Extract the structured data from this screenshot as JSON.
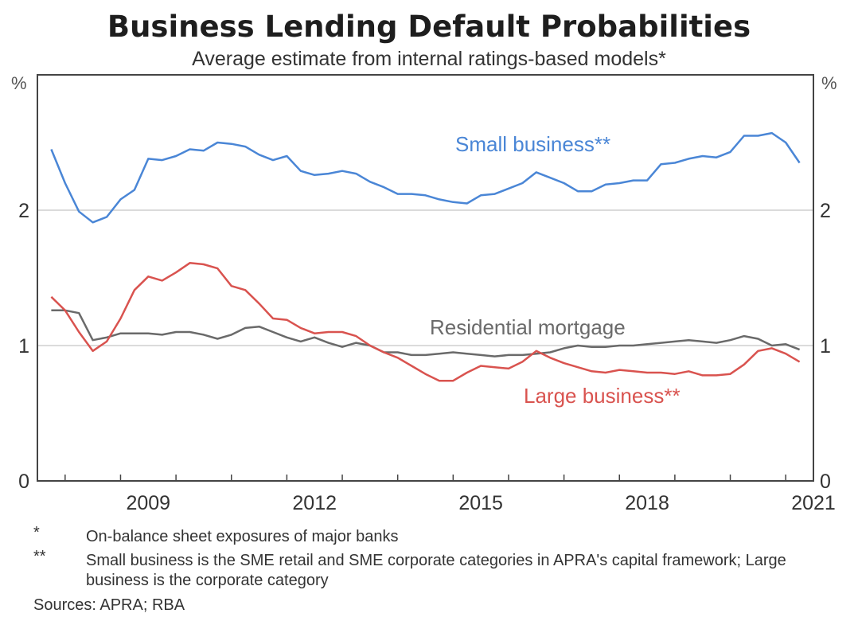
{
  "chart_data": {
    "type": "line",
    "title": "Business Lending Default Probabilities",
    "subtitle": "Average estimate from internal ratings-based models*",
    "y_unit": "%",
    "ylim": [
      0,
      3
    ],
    "yticks": [
      0,
      1,
      2
    ],
    "xlim": [
      2007.5,
      2021.5
    ],
    "xticks": [
      2008,
      2009,
      2010,
      2011,
      2012,
      2013,
      2014,
      2015,
      2016,
      2017,
      2018,
      2019,
      2020,
      2021,
      2022
    ],
    "xtick_labels": [
      {
        "year": 2009,
        "label": "2009"
      },
      {
        "year": 2012,
        "label": "2012"
      },
      {
        "year": 2015,
        "label": "2015"
      },
      {
        "year": 2018,
        "label": "2018"
      },
      {
        "year": 2021,
        "label": "2021"
      }
    ],
    "grid": "horizontal at 1 and 2",
    "series": [
      {
        "name": "Small business**",
        "color": "#4a86d6",
        "points": [
          [
            2007.75,
            2.45
          ],
          [
            2008.0,
            2.2
          ],
          [
            2008.25,
            1.99
          ],
          [
            2008.5,
            1.91
          ],
          [
            2008.75,
            1.95
          ],
          [
            2009.0,
            2.08
          ],
          [
            2009.25,
            2.15
          ],
          [
            2009.5,
            2.38
          ],
          [
            2009.75,
            2.37
          ],
          [
            2010.0,
            2.4
          ],
          [
            2010.25,
            2.45
          ],
          [
            2010.5,
            2.44
          ],
          [
            2010.75,
            2.5
          ],
          [
            2011.0,
            2.49
          ],
          [
            2011.25,
            2.47
          ],
          [
            2011.5,
            2.41
          ],
          [
            2011.75,
            2.37
          ],
          [
            2012.0,
            2.4
          ],
          [
            2012.25,
            2.29
          ],
          [
            2012.5,
            2.26
          ],
          [
            2012.75,
            2.27
          ],
          [
            2013.0,
            2.29
          ],
          [
            2013.25,
            2.27
          ],
          [
            2013.5,
            2.21
          ],
          [
            2013.75,
            2.17
          ],
          [
            2014.0,
            2.12
          ],
          [
            2014.25,
            2.12
          ],
          [
            2014.5,
            2.11
          ],
          [
            2014.75,
            2.08
          ],
          [
            2015.0,
            2.06
          ],
          [
            2015.25,
            2.05
          ],
          [
            2015.5,
            2.11
          ],
          [
            2015.75,
            2.12
          ],
          [
            2016.0,
            2.16
          ],
          [
            2016.25,
            2.2
          ],
          [
            2016.5,
            2.28
          ],
          [
            2016.75,
            2.24
          ],
          [
            2017.0,
            2.2
          ],
          [
            2017.25,
            2.14
          ],
          [
            2017.5,
            2.14
          ],
          [
            2017.75,
            2.19
          ],
          [
            2018.0,
            2.2
          ],
          [
            2018.25,
            2.22
          ],
          [
            2018.5,
            2.22
          ],
          [
            2018.75,
            2.34
          ],
          [
            2019.0,
            2.35
          ],
          [
            2019.25,
            2.38
          ],
          [
            2019.5,
            2.4
          ],
          [
            2019.75,
            2.39
          ],
          [
            2020.0,
            2.43
          ],
          [
            2020.25,
            2.55
          ],
          [
            2020.5,
            2.55
          ],
          [
            2020.75,
            2.57
          ],
          [
            2021.0,
            2.5
          ],
          [
            2021.25,
            2.35
          ]
        ]
      },
      {
        "name": "Residential mortgage",
        "color": "#6a6a6a",
        "points": [
          [
            2007.75,
            1.26
          ],
          [
            2008.0,
            1.26
          ],
          [
            2008.25,
            1.24
          ],
          [
            2008.5,
            1.04
          ],
          [
            2008.75,
            1.06
          ],
          [
            2009.0,
            1.09
          ],
          [
            2009.25,
            1.09
          ],
          [
            2009.5,
            1.09
          ],
          [
            2009.75,
            1.08
          ],
          [
            2010.0,
            1.1
          ],
          [
            2010.25,
            1.1
          ],
          [
            2010.5,
            1.08
          ],
          [
            2010.75,
            1.05
          ],
          [
            2011.0,
            1.08
          ],
          [
            2011.25,
            1.13
          ],
          [
            2011.5,
            1.14
          ],
          [
            2011.75,
            1.1
          ],
          [
            2012.0,
            1.06
          ],
          [
            2012.25,
            1.03
          ],
          [
            2012.5,
            1.06
          ],
          [
            2012.75,
            1.02
          ],
          [
            2013.0,
            0.99
          ],
          [
            2013.25,
            1.02
          ],
          [
            2013.5,
            1.0
          ],
          [
            2013.75,
            0.95
          ],
          [
            2014.0,
            0.95
          ],
          [
            2014.25,
            0.93
          ],
          [
            2014.5,
            0.93
          ],
          [
            2014.75,
            0.94
          ],
          [
            2015.0,
            0.95
          ],
          [
            2015.25,
            0.94
          ],
          [
            2015.5,
            0.93
          ],
          [
            2015.75,
            0.92
          ],
          [
            2016.0,
            0.93
          ],
          [
            2016.25,
            0.93
          ],
          [
            2016.5,
            0.94
          ],
          [
            2016.75,
            0.95
          ],
          [
            2017.0,
            0.98
          ],
          [
            2017.25,
            1.0
          ],
          [
            2017.5,
            0.99
          ],
          [
            2017.75,
            0.99
          ],
          [
            2018.0,
            1.0
          ],
          [
            2018.25,
            1.0
          ],
          [
            2018.5,
            1.01
          ],
          [
            2018.75,
            1.02
          ],
          [
            2019.0,
            1.03
          ],
          [
            2019.25,
            1.04
          ],
          [
            2019.5,
            1.03
          ],
          [
            2019.75,
            1.02
          ],
          [
            2020.0,
            1.04
          ],
          [
            2020.25,
            1.07
          ],
          [
            2020.5,
            1.05
          ],
          [
            2020.75,
            1.0
          ],
          [
            2021.0,
            1.01
          ],
          [
            2021.25,
            0.97
          ]
        ]
      },
      {
        "name": "Large business**",
        "color": "#d9534f",
        "points": [
          [
            2007.75,
            1.36
          ],
          [
            2008.0,
            1.26
          ],
          [
            2008.25,
            1.1
          ],
          [
            2008.5,
            0.96
          ],
          [
            2008.75,
            1.03
          ],
          [
            2009.0,
            1.2
          ],
          [
            2009.25,
            1.41
          ],
          [
            2009.5,
            1.51
          ],
          [
            2009.75,
            1.48
          ],
          [
            2010.0,
            1.54
          ],
          [
            2010.25,
            1.61
          ],
          [
            2010.5,
            1.6
          ],
          [
            2010.75,
            1.57
          ],
          [
            2011.0,
            1.44
          ],
          [
            2011.25,
            1.41
          ],
          [
            2011.5,
            1.31
          ],
          [
            2011.75,
            1.2
          ],
          [
            2012.0,
            1.19
          ],
          [
            2012.25,
            1.13
          ],
          [
            2012.5,
            1.09
          ],
          [
            2012.75,
            1.1
          ],
          [
            2013.0,
            1.1
          ],
          [
            2013.25,
            1.07
          ],
          [
            2013.5,
            1.0
          ],
          [
            2013.75,
            0.95
          ],
          [
            2014.0,
            0.91
          ],
          [
            2014.25,
            0.85
          ],
          [
            2014.5,
            0.79
          ],
          [
            2014.75,
            0.74
          ],
          [
            2015.0,
            0.74
          ],
          [
            2015.25,
            0.8
          ],
          [
            2015.5,
            0.85
          ],
          [
            2015.75,
            0.84
          ],
          [
            2016.0,
            0.83
          ],
          [
            2016.25,
            0.88
          ],
          [
            2016.5,
            0.96
          ],
          [
            2016.75,
            0.91
          ],
          [
            2017.0,
            0.87
          ],
          [
            2017.25,
            0.84
          ],
          [
            2017.5,
            0.81
          ],
          [
            2017.75,
            0.8
          ],
          [
            2018.0,
            0.82
          ],
          [
            2018.25,
            0.81
          ],
          [
            2018.5,
            0.8
          ],
          [
            2018.75,
            0.8
          ],
          [
            2019.0,
            0.79
          ],
          [
            2019.25,
            0.81
          ],
          [
            2019.5,
            0.78
          ],
          [
            2019.75,
            0.78
          ],
          [
            2020.0,
            0.79
          ],
          [
            2020.25,
            0.86
          ],
          [
            2020.5,
            0.96
          ],
          [
            2020.75,
            0.98
          ],
          [
            2021.0,
            0.94
          ],
          [
            2021.25,
            0.88
          ]
        ]
      }
    ],
    "annotations": [
      {
        "text": "Small business**",
        "series": "Small business**"
      },
      {
        "text": "Residential mortgage",
        "series": "Residential mortgage"
      },
      {
        "text": "Large business**",
        "series": "Large business**"
      }
    ]
  },
  "footnotes": [
    {
      "marker": "*",
      "text": "On-balance sheet exposures of major banks"
    },
    {
      "marker": "**",
      "text": "Small business is the SME retail and SME corporate categories in APRA's capital framework; Large business is the corporate category"
    }
  ],
  "sources": "Sources: APRA; RBA"
}
